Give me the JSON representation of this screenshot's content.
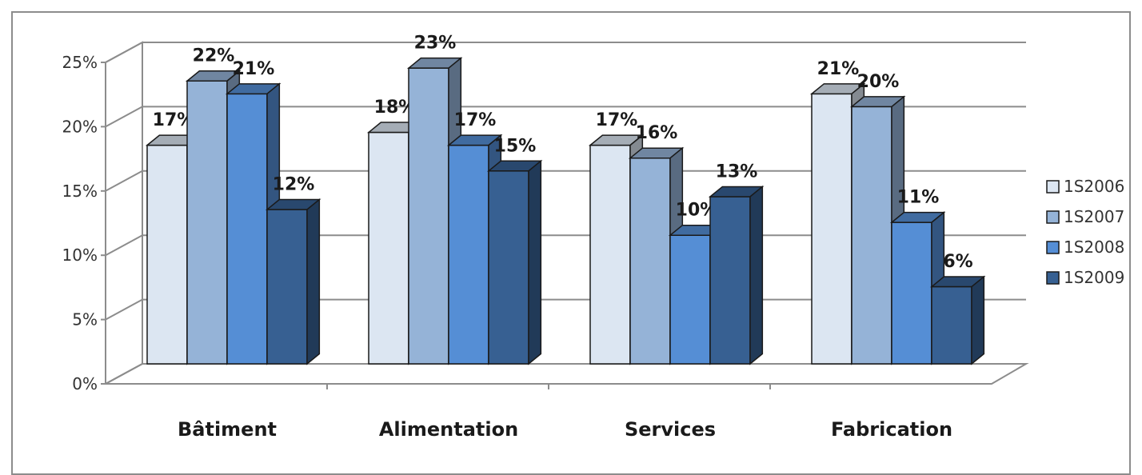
{
  "chart_data": {
    "type": "bar",
    "title": "",
    "xlabel": "",
    "ylabel": "",
    "categories": [
      "Bâtiment",
      "Alimentation",
      "Services",
      "Fabrication"
    ],
    "series": [
      {
        "name": "1S2006",
        "values": [
          17,
          18,
          17,
          21
        ],
        "color": "#dce6f2"
      },
      {
        "name": "1S2007",
        "values": [
          22,
          23,
          16,
          20
        ],
        "color": "#95b3d7"
      },
      {
        "name": "1S2008",
        "values": [
          21,
          17,
          10,
          11
        ],
        "color": "#558ed5"
      },
      {
        "name": "1S2009",
        "values": [
          12,
          15,
          13,
          6
        ],
        "color": "#376092"
      }
    ],
    "data_labels": [
      [
        "17%",
        "18%",
        "17%",
        "21%"
      ],
      [
        "22%",
        "23%",
        "16%",
        "20%"
      ],
      [
        "21%",
        "17%",
        "10%",
        "11%"
      ],
      [
        "12%",
        "15%",
        "13%",
        "6%"
      ]
    ],
    "ylim": [
      0,
      25
    ],
    "yticks": [
      "0%",
      "5%",
      "10%",
      "15%",
      "20%",
      "25%"
    ],
    "grid": true,
    "legend_position": "right",
    "style": "3d-clustered-column"
  }
}
